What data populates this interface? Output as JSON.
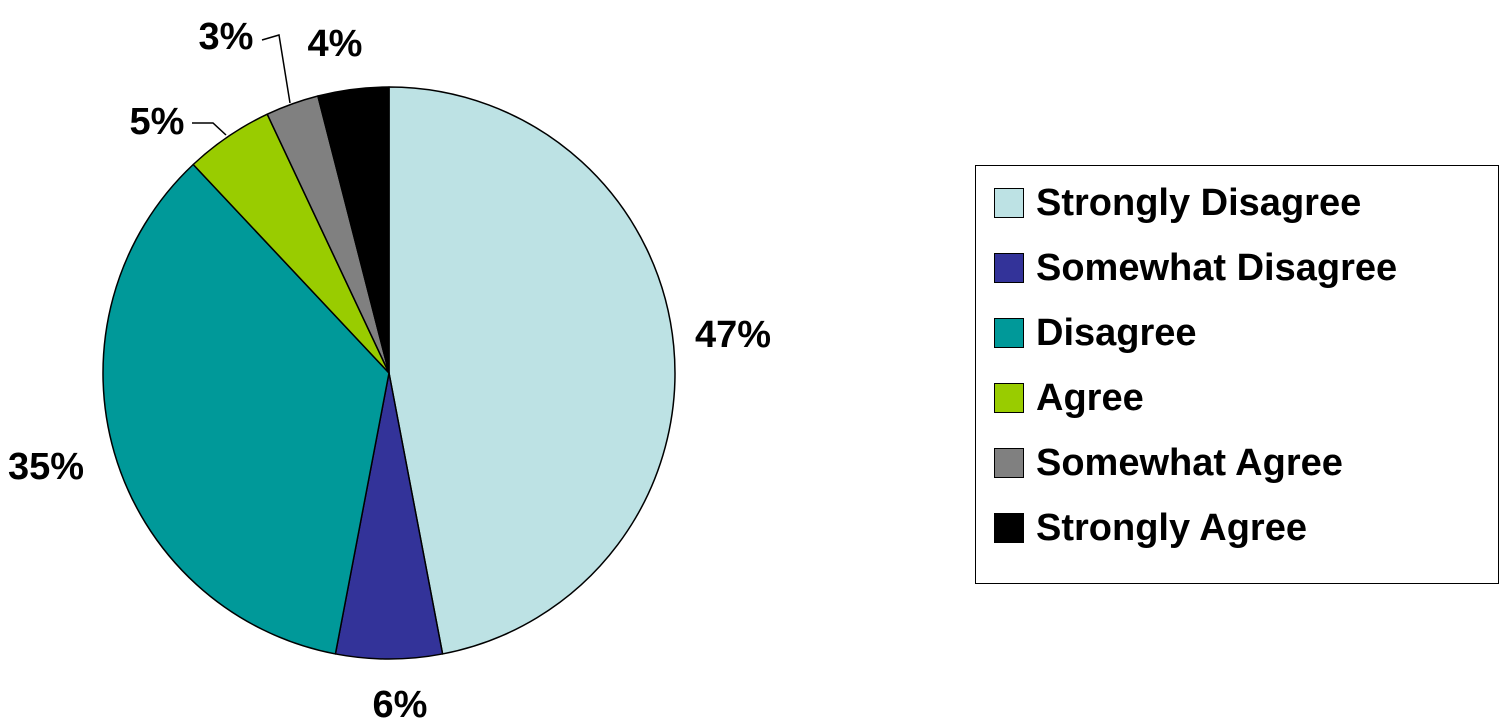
{
  "chart_data": {
    "type": "pie",
    "title": "",
    "slices": [
      {
        "label": "Strongly Disagree",
        "value": 47,
        "data_label": "47%",
        "color": "#BDE2E4"
      },
      {
        "label": "Somewhat Disagree",
        "value": 6,
        "data_label": "6%",
        "color": "#333399"
      },
      {
        "label": "Disagree",
        "value": 35,
        "data_label": "35%",
        "color": "#009999"
      },
      {
        "label": "Agree",
        "value": 5,
        "data_label": "5%",
        "color": "#99CC00"
      },
      {
        "label": "Somewhat Agree",
        "value": 3,
        "data_label": "3%",
        "color": "#808080"
      },
      {
        "label": "Strongly Agree",
        "value": 4,
        "data_label": "4%",
        "color": "#000000"
      }
    ],
    "start_angle_deg": 0,
    "direction": "clockwise",
    "legend_position": "right"
  }
}
